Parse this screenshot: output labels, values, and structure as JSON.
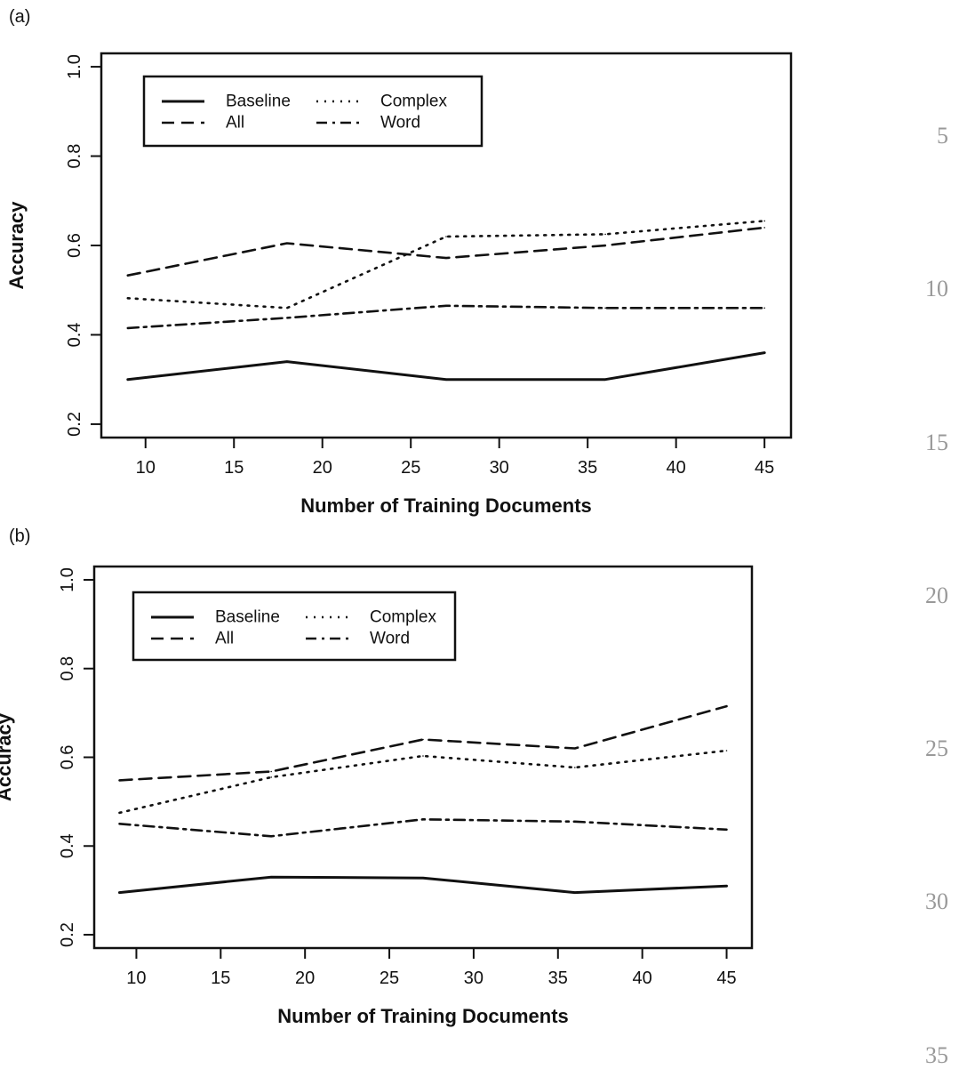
{
  "panels": [
    {
      "label": "(a)"
    },
    {
      "label": "(b)"
    }
  ],
  "line_numbers": [
    "5",
    "10",
    "15",
    "20",
    "25",
    "30",
    "35"
  ],
  "chart_data": [
    {
      "type": "line",
      "xlabel": "Number of Training Documents",
      "ylabel": "Accuracy",
      "xlim": [
        7.5,
        46.5
      ],
      "ylim": [
        0.17,
        1.03
      ],
      "xticks": [
        "10",
        "15",
        "20",
        "25",
        "30",
        "35",
        "40",
        "45"
      ],
      "yticks": [
        "0.2",
        "0.4",
        "0.6",
        "0.8",
        "1.0"
      ],
      "grid": false,
      "legend_position": "top-left",
      "x": [
        9,
        18,
        27,
        36,
        45
      ],
      "series": [
        {
          "name": "Baseline",
          "style": "solid",
          "values": [
            0.3,
            0.34,
            0.3,
            0.3,
            0.36
          ]
        },
        {
          "name": "All",
          "style": "dashed",
          "values": [
            0.533,
            0.605,
            0.572,
            0.6,
            0.64
          ]
        },
        {
          "name": "Complex",
          "style": "dotted",
          "values": [
            0.482,
            0.46,
            0.62,
            0.625,
            0.655
          ]
        },
        {
          "name": "Word",
          "style": "dashdot",
          "values": [
            0.415,
            0.438,
            0.465,
            0.46,
            0.46
          ]
        }
      ]
    },
    {
      "type": "line",
      "xlabel": "Number of Training Documents",
      "ylabel": "Accuracy",
      "xlim": [
        7.5,
        46.5
      ],
      "ylim": [
        0.17,
        1.03
      ],
      "xticks": [
        "10",
        "15",
        "20",
        "25",
        "30",
        "35",
        "40",
        "45"
      ],
      "yticks": [
        "0.2",
        "0.4",
        "0.6",
        "0.8",
        "1.0"
      ],
      "grid": false,
      "legend_position": "top-left",
      "x": [
        9,
        18,
        27,
        36,
        45
      ],
      "series": [
        {
          "name": "Baseline",
          "style": "solid",
          "values": [
            0.295,
            0.33,
            0.328,
            0.295,
            0.31
          ]
        },
        {
          "name": "All",
          "style": "dashed",
          "values": [
            0.548,
            0.568,
            0.64,
            0.62,
            0.715
          ]
        },
        {
          "name": "Complex",
          "style": "dotted",
          "values": [
            0.475,
            0.555,
            0.603,
            0.577,
            0.615
          ]
        },
        {
          "name": "Word",
          "style": "dashdot",
          "values": [
            0.45,
            0.422,
            0.46,
            0.455,
            0.437
          ]
        }
      ]
    }
  ]
}
